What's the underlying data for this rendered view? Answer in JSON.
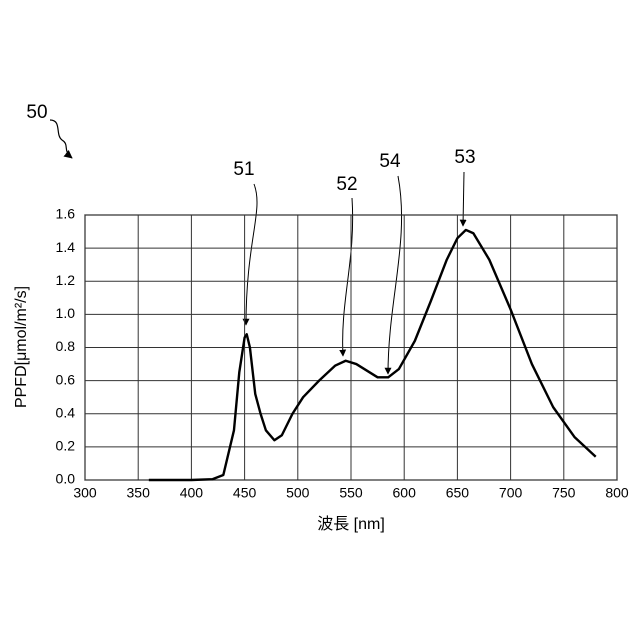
{
  "chart_data": {
    "type": "line",
    "x_label": "波長 [nm]",
    "y_label": "PPFD[μmol/m²/s]",
    "annotations": [
      "50",
      "51",
      "52",
      "54",
      "53"
    ],
    "x": [
      360,
      400,
      420,
      430,
      440,
      445,
      450,
      452,
      455,
      460,
      465,
      470,
      478,
      485,
      495,
      505,
      520,
      535,
      545,
      555,
      565,
      575,
      585,
      595,
      610,
      625,
      640,
      650,
      658,
      665,
      680,
      700,
      720,
      740,
      760,
      780
    ],
    "values": [
      0,
      0,
      0.005,
      0.03,
      0.3,
      0.65,
      0.86,
      0.88,
      0.8,
      0.52,
      0.4,
      0.3,
      0.24,
      0.27,
      0.4,
      0.5,
      0.6,
      0.69,
      0.72,
      0.7,
      0.66,
      0.62,
      0.62,
      0.67,
      0.84,
      1.08,
      1.33,
      1.46,
      1.51,
      1.49,
      1.33,
      1.03,
      0.7,
      0.44,
      0.26,
      0.14
    ],
    "color": "#000000",
    "xlim": [
      300,
      800
    ],
    "xticks": [
      300,
      350,
      400,
      450,
      500,
      550,
      600,
      650,
      700,
      750,
      800
    ],
    "ylim": [
      0,
      1.6
    ],
    "yticks": [
      {
        "value": 0,
        "label": "0.0"
      },
      0.2,
      0.4,
      0.6,
      0.8,
      {
        "value": 1,
        "label": "1.0"
      },
      1.2,
      1.4,
      1.6
    ],
    "grid": true
  }
}
